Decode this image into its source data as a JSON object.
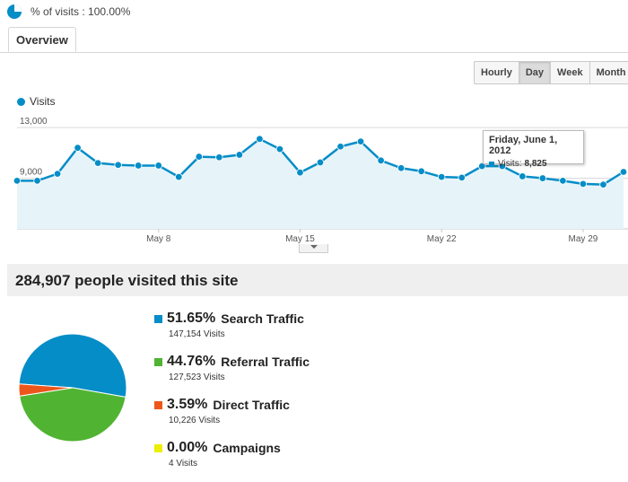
{
  "segment": {
    "label": "% of visits : 100.00%"
  },
  "tabs": [
    {
      "label": "Overview"
    }
  ],
  "granularity": {
    "options": [
      "Hourly",
      "Day",
      "Week",
      "Month"
    ],
    "selected": "Day"
  },
  "colors": {
    "line": "#058dc7",
    "fill": "#e6f4fa",
    "grid": "#d9d9d9"
  },
  "chart_data": {
    "type": "line",
    "title": "",
    "series": [
      {
        "name": "Visits",
        "values": [
          8800,
          8800,
          9350,
          11400,
          10200,
          10050,
          10000,
          10000,
          9100,
          10700,
          10650,
          10850,
          12100,
          11300,
          9450,
          10250,
          11500,
          11900,
          10400,
          9800,
          9550,
          9100,
          9050,
          9950,
          9950,
          9150,
          9000,
          8800,
          8550,
          8500,
          9500
        ]
      }
    ],
    "x": [
      "May 1",
      "May 2",
      "May 3",
      "May 4",
      "May 5",
      "May 6",
      "May 7",
      "May 8",
      "May 9",
      "May 10",
      "May 11",
      "May 12",
      "May 13",
      "May 14",
      "May 15",
      "May 16",
      "May 17",
      "May 18",
      "May 19",
      "May 20",
      "May 21",
      "May 22",
      "May 23",
      "May 24",
      "May 25",
      "May 26",
      "May 27",
      "May 28",
      "May 29",
      "May 30",
      "May 31"
    ],
    "x_ticks": [
      "May 8",
      "May 15",
      "May 22",
      "May 29"
    ],
    "y_ticks": [
      "13,000",
      "9,000"
    ],
    "ylim": [
      5000,
      14000
    ],
    "grid": true,
    "legend": "top-left"
  },
  "tooltip": {
    "date": "Friday, June 1, 2012",
    "metric": "Visits:",
    "value": "8,825"
  },
  "summary": {
    "headline": "284,907 people visited this site"
  },
  "traffic": [
    {
      "pct": "51.65%",
      "name": "Search Traffic",
      "visits": "147,154 Visits",
      "color": "#058dc7",
      "share": 51.65
    },
    {
      "pct": "44.76%",
      "name": "Referral Traffic",
      "visits": "127,523 Visits",
      "color": "#50b432",
      "share": 44.76
    },
    {
      "pct": "3.59%",
      "name": "Direct Traffic",
      "visits": "10,226 Visits",
      "color": "#ed561b",
      "share": 3.59
    },
    {
      "pct": "0.00%",
      "name": "Campaigns",
      "visits": "4 Visits",
      "color": "#edef00",
      "share": 0.0
    }
  ]
}
